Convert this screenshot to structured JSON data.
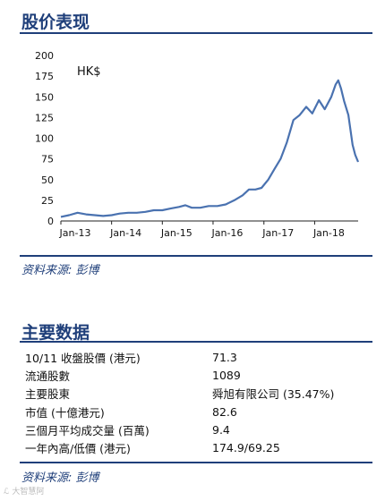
{
  "stock_section": {
    "title": "股价表现"
  },
  "source_label": "资料来源: 彭博",
  "chart_data": {
    "type": "line",
    "title": "",
    "unit_label": "HK$",
    "xlabel": "",
    "ylabel": "",
    "x_tick_labels": [
      "Jan-13",
      "Jan-14",
      "Jan-15",
      "Jan-16",
      "Jan-17",
      "Jan-18"
    ],
    "y_ticks": [
      0,
      25,
      50,
      75,
      100,
      125,
      150,
      175,
      200
    ],
    "ylim": [
      0,
      200
    ],
    "xlim": [
      "2013-01-01",
      "2018-11-10"
    ],
    "grid": false,
    "color": "#4a72b0",
    "series": [
      {
        "x": [
          "2013-01-01",
          "2013-03-01",
          "2013-05-01",
          "2013-07-01",
          "2013-09-01",
          "2013-11-01",
          "2014-01-01",
          "2014-03-01",
          "2014-05-01",
          "2014-07-01",
          "2014-09-01",
          "2014-11-01",
          "2015-01-01",
          "2015-03-01",
          "2015-05-01",
          "2015-06-15",
          "2015-08-01",
          "2015-10-01",
          "2015-12-01",
          "2016-02-01",
          "2016-04-01",
          "2016-06-01",
          "2016-08-01",
          "2016-09-15",
          "2016-11-01",
          "2016-12-15",
          "2017-02-01",
          "2017-03-15",
          "2017-05-01",
          "2017-06-15",
          "2017-08-01",
          "2017-09-15",
          "2017-11-01",
          "2017-12-15",
          "2018-02-01",
          "2018-03-15",
          "2018-05-01",
          "2018-06-01",
          "2018-06-20",
          "2018-07-10",
          "2018-08-01",
          "2018-09-01",
          "2018-10-01",
          "2018-10-20",
          "2018-11-10"
        ],
        "values": [
          5,
          7,
          10,
          8,
          7,
          6,
          7,
          9,
          10,
          10,
          11,
          13,
          13,
          15,
          17,
          19,
          16,
          16,
          18,
          18,
          20,
          25,
          31,
          38,
          38,
          40,
          50,
          62,
          75,
          95,
          122,
          128,
          138,
          130,
          146,
          135,
          150,
          165,
          170,
          160,
          145,
          128,
          92,
          80,
          71.3
        ]
      }
    ]
  },
  "metrics_section": {
    "title": "主要数据",
    "rows": [
      {
        "label": "10/11 收盤股價 (港元)",
        "value": "71.3"
      },
      {
        "label": "流通股數",
        "value": "1089"
      },
      {
        "label": "主要股東",
        "value": "舜旭有限公司 (35.47%)"
      },
      {
        "label": "市值 (十億港元)",
        "value": "82.6"
      },
      {
        "label": "三個月平均成交量 (百萬)",
        "value": "9.4"
      },
      {
        "label": "一年內高/低價 (港元)",
        "value": "174.9/69.25"
      }
    ]
  },
  "watermark": "ℒ 大智慧阿"
}
